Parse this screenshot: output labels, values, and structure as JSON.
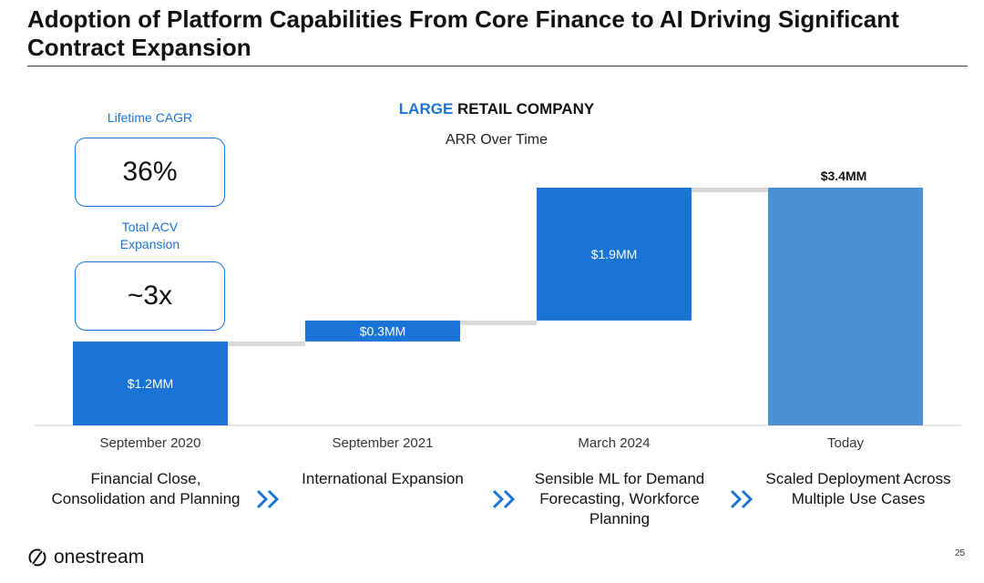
{
  "slide": {
    "title": "Adoption of Platform Capabilities From Core Finance to AI Driving Significant Contract Expansion",
    "page_number": "25",
    "brand": "onestream",
    "accent_color": "#1a74d6"
  },
  "kpis": [
    {
      "label": "Lifetime CAGR",
      "value": "36%"
    },
    {
      "label": "Total ACV Expansion",
      "value": "~3x"
    }
  ],
  "chart_data": {
    "type": "bar",
    "subtype": "waterfall",
    "title_highlight": "LARGE",
    "title_rest": "RETAIL COMPANY",
    "subtitle": "ARR Over Time",
    "categories": [
      "September 2020",
      "September 2021",
      "March 2024",
      "Today"
    ],
    "increments": [
      1.2,
      0.3,
      1.9,
      3.4
    ],
    "bar_kind": [
      "increment",
      "increment",
      "increment",
      "total"
    ],
    "data_labels": [
      "$1.2MM",
      "$0.3MM",
      "$1.9MM",
      "$3.4MM"
    ],
    "unit": "$MM",
    "ylim": [
      0,
      3.4
    ],
    "colors": {
      "increment": "#1a74d6",
      "total": "#4a8fd4",
      "connector": "#d8d8d8",
      "baseline": "#d0d0d0"
    }
  },
  "stages": [
    "Financial Close, Consolidation and Planning",
    "International Expansion",
    "Sensible ML for Demand Forecasting, Workforce Planning",
    "Scaled Deployment Across Multiple Use Cases"
  ],
  "icons": {
    "stage_arrow": "double-chevron-right-icon",
    "logo": "onestream-logo-icon"
  }
}
